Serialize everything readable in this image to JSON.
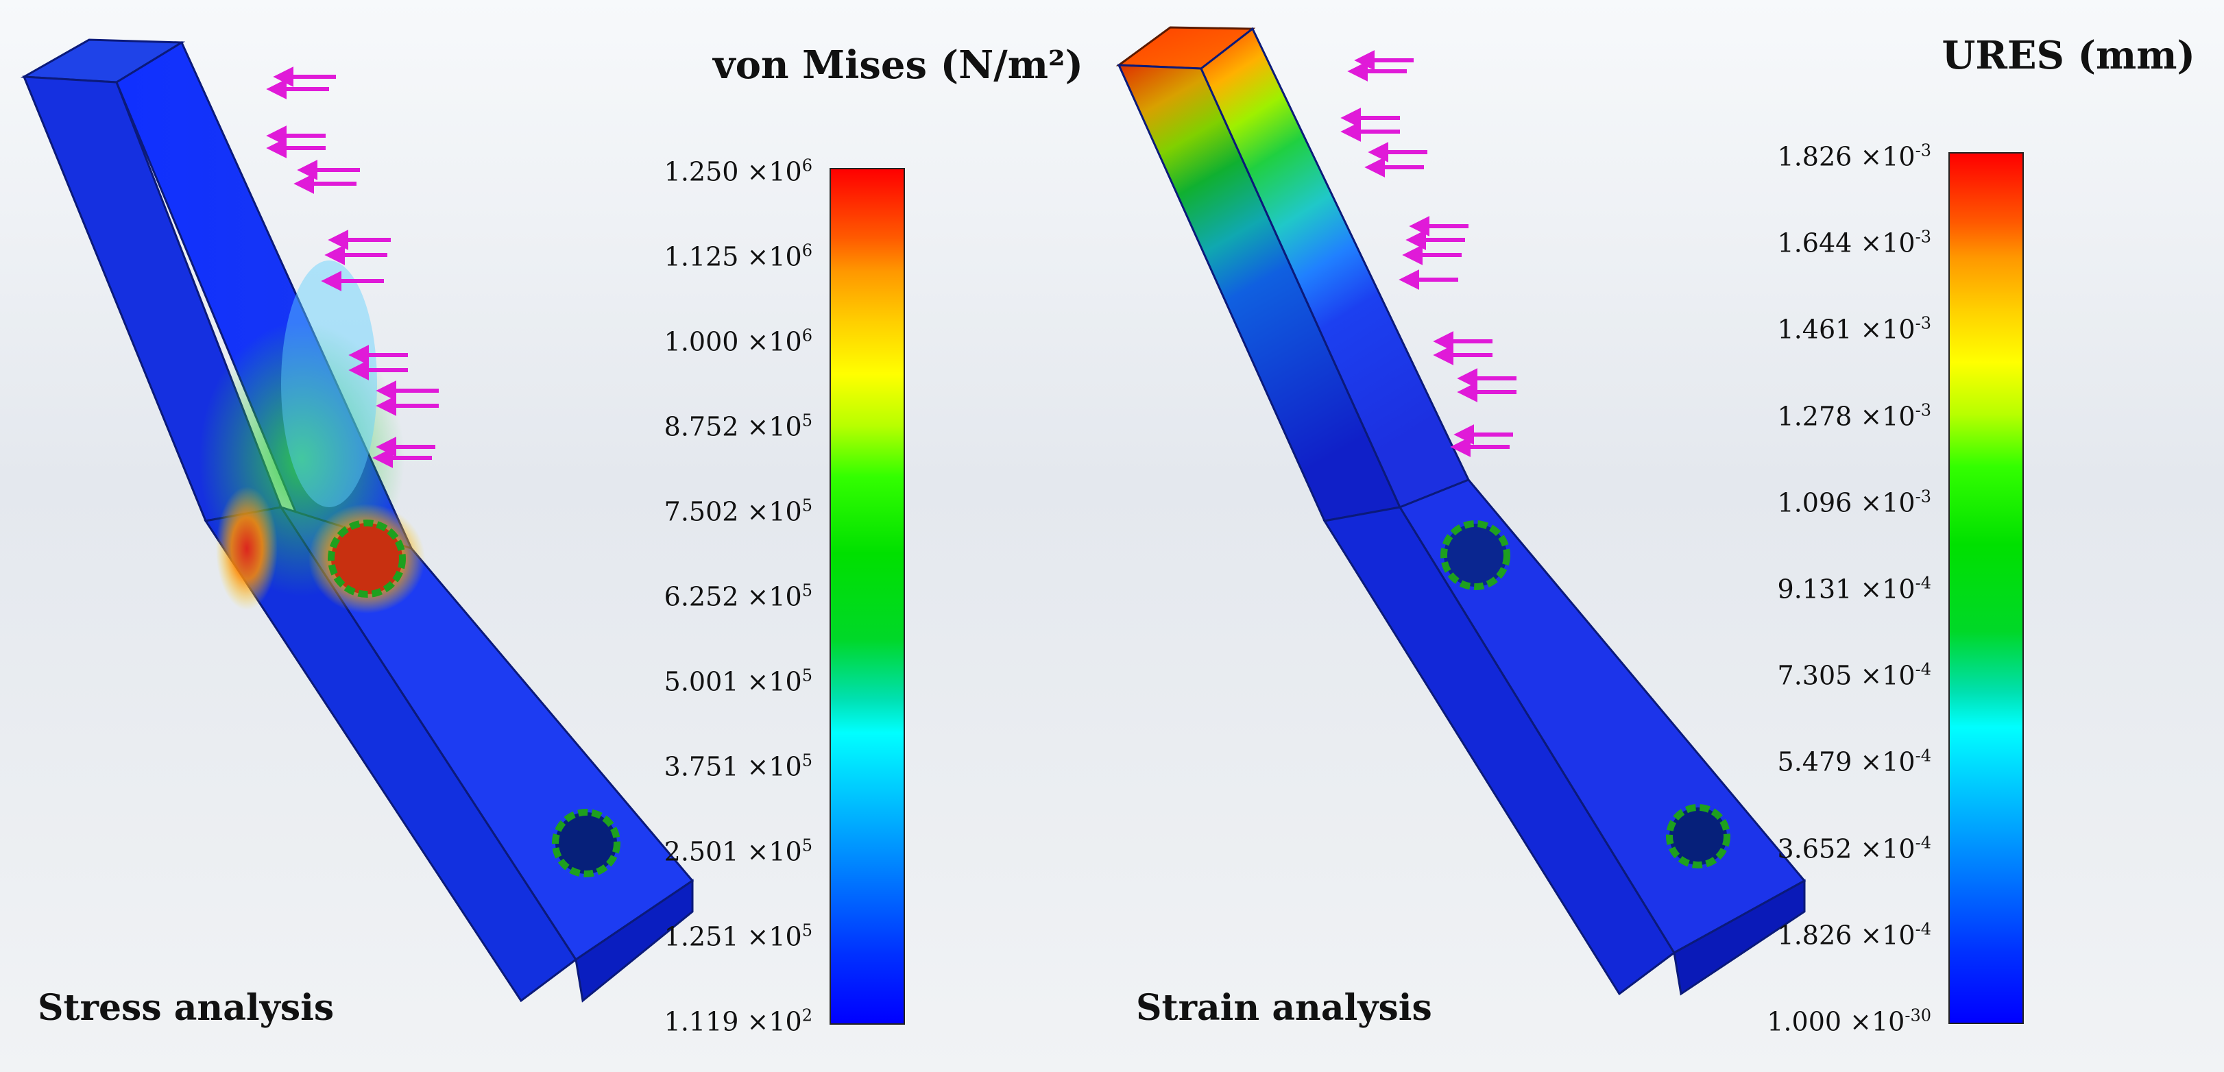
{
  "panels": [
    {
      "caption": "Stress analysis",
      "legend_title": "von Mises (N/m²)",
      "ticks": [
        {
          "m": "1.250",
          "e": "6"
        },
        {
          "m": "1.125",
          "e": "6"
        },
        {
          "m": "1.000",
          "e": "6"
        },
        {
          "m": "8.752",
          "e": "5"
        },
        {
          "m": "7.502",
          "e": "5"
        },
        {
          "m": "6.252",
          "e": "5"
        },
        {
          "m": "5.001",
          "e": "5"
        },
        {
          "m": "3.751",
          "e": "5"
        },
        {
          "m": "2.501",
          "e": "5"
        },
        {
          "m": "1.251",
          "e": "5"
        },
        {
          "m": "1.119",
          "e": "2"
        }
      ]
    },
    {
      "caption": "Strain analysis",
      "legend_title": "URES (mm)",
      "ticks": [
        {
          "m": "1.826",
          "e": "-3"
        },
        {
          "m": "1.644",
          "e": "-3"
        },
        {
          "m": "1.461",
          "e": "-3"
        },
        {
          "m": "1.278",
          "e": "-3"
        },
        {
          "m": "1.096",
          "e": "-3"
        },
        {
          "m": "9.131",
          "e": "-4"
        },
        {
          "m": "7.305",
          "e": "-4"
        },
        {
          "m": "5.479",
          "e": "-4"
        },
        {
          "m": "3.652",
          "e": "-4"
        },
        {
          "m": "1.826",
          "e": "-4"
        },
        {
          "m": "1.000",
          "e": "-30"
        }
      ]
    }
  ],
  "tick_separator": "×10",
  "colors": {
    "max": "#ff0000",
    "mid": "#00e000",
    "min": "#0000ff",
    "load_arrows": "#e01ad8",
    "fixtures": "#1ea01e"
  }
}
